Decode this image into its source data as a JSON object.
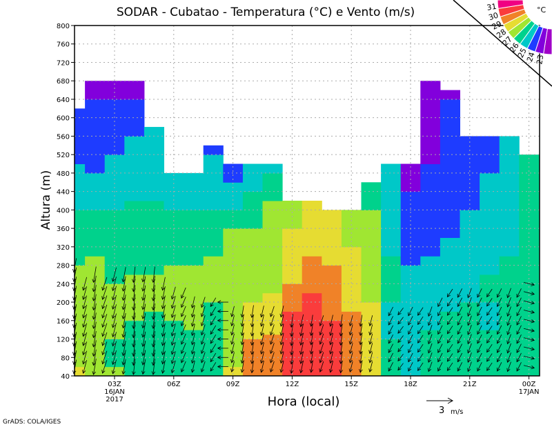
{
  "chart_data": {
    "type": "heatmap",
    "title": "SODAR - Cubatao - Temperatura (°C) e Vento (m/s)",
    "xlabel": "Hora (local)",
    "ylabel": "Altura (m)",
    "ylim": [
      40,
      800
    ],
    "yticks": [
      "40",
      "80",
      "120",
      "160",
      "200",
      "240",
      "280",
      "320",
      "360",
      "400",
      "440",
      "480",
      "520",
      "560",
      "600",
      "640",
      "680",
      "720",
      "760",
      "800"
    ],
    "xlim_hours": [
      1,
      24.6
    ],
    "xticks": [
      {
        "hour": 3,
        "label": "03Z",
        "sub1": "16JAN",
        "sub2": "2017"
      },
      {
        "hour": 6,
        "label": "06Z"
      },
      {
        "hour": 9,
        "label": "09Z"
      },
      {
        "hour": 12,
        "label": "12Z"
      },
      {
        "hour": 15,
        "label": "15Z"
      },
      {
        "hour": 18,
        "label": "18Z"
      },
      {
        "hour": 21,
        "label": "21Z"
      },
      {
        "hour": 24,
        "label": "00Z",
        "sub1": "17JAN"
      }
    ],
    "grid": true,
    "colorbar": {
      "unit": "°C",
      "labels": [
        "23",
        "24",
        "25",
        "26",
        "27",
        "28",
        "29",
        "30",
        "31"
      ],
      "colors": [
        "#a000c8",
        "#8200dc",
        "#1e3cff",
        "#00c8c8",
        "#00d28c",
        "#a0e632",
        "#e6dc32",
        "#f08228",
        "#fa3c3c",
        "#f00082"
      ]
    },
    "temperature_columns": [
      {
        "hour": 1,
        "bands": [
          [
            28.5,
            60
          ],
          [
            27.5,
            280
          ],
          [
            26.5,
            400
          ],
          [
            25.5,
            500
          ],
          [
            24.5,
            620
          ]
        ]
      },
      {
        "hour": 2,
        "bands": [
          [
            27.5,
            300
          ],
          [
            26.5,
            400
          ],
          [
            25.5,
            480
          ],
          [
            24.5,
            640
          ],
          [
            23.5,
            680
          ]
        ]
      },
      {
        "hour": 3,
        "bands": [
          [
            27.5,
            60
          ],
          [
            26.5,
            120
          ],
          [
            27.5,
            240
          ],
          [
            26.5,
            400
          ],
          [
            25.5,
            520
          ],
          [
            24.5,
            640
          ],
          [
            23.5,
            680
          ]
        ]
      },
      {
        "hour": 4,
        "bands": [
          [
            26.5,
            160
          ],
          [
            27.5,
            260
          ],
          [
            26.5,
            420
          ],
          [
            25.5,
            560
          ],
          [
            24.5,
            640
          ],
          [
            23.5,
            680
          ]
        ]
      },
      {
        "hour": 5,
        "bands": [
          [
            26.5,
            180
          ],
          [
            27.5,
            260
          ],
          [
            26.5,
            420
          ],
          [
            25.5,
            580
          ]
        ]
      },
      {
        "hour": 6,
        "bands": [
          [
            26.5,
            160
          ],
          [
            27.5,
            280
          ],
          [
            26.5,
            400
          ],
          [
            25.5,
            480
          ]
        ]
      },
      {
        "hour": 7,
        "bands": [
          [
            26.5,
            140
          ],
          [
            27.5,
            280
          ],
          [
            26.5,
            400
          ],
          [
            25.5,
            480
          ]
        ]
      },
      {
        "hour": 8,
        "bands": [
          [
            26.5,
            200
          ],
          [
            27.5,
            300
          ],
          [
            26.5,
            400
          ],
          [
            25.5,
            520
          ],
          [
            24.5,
            540
          ]
        ]
      },
      {
        "hour": 9,
        "bands": [
          [
            28.5,
            60
          ],
          [
            27.5,
            360
          ],
          [
            26.5,
            400
          ],
          [
            25.5,
            460
          ],
          [
            24.5,
            500
          ]
        ]
      },
      {
        "hour": 10,
        "bands": [
          [
            29.5,
            120
          ],
          [
            28.5,
            200
          ],
          [
            27.5,
            360
          ],
          [
            26.5,
            440
          ],
          [
            25.5,
            500
          ]
        ]
      },
      {
        "hour": 11,
        "bands": [
          [
            29.5,
            130
          ],
          [
            28.5,
            220
          ],
          [
            27.5,
            420
          ],
          [
            26.5,
            480
          ],
          [
            25.5,
            500
          ]
        ]
      },
      {
        "hour": 12,
        "bands": [
          [
            30.5,
            180
          ],
          [
            29.5,
            240
          ],
          [
            28.5,
            360
          ],
          [
            27.5,
            420
          ]
        ]
      },
      {
        "hour": 13,
        "bands": [
          [
            30.5,
            220
          ],
          [
            29.5,
            300
          ],
          [
            28.5,
            420
          ]
        ]
      },
      {
        "hour": 14,
        "bands": [
          [
            30.5,
            160
          ],
          [
            29.5,
            280
          ],
          [
            28.5,
            400
          ]
        ]
      },
      {
        "hour": 15,
        "bands": [
          [
            29.5,
            180
          ],
          [
            28.5,
            320
          ],
          [
            27.5,
            400
          ]
        ]
      },
      {
        "hour": 16,
        "bands": [
          [
            28.5,
            200
          ],
          [
            27.5,
            400
          ],
          [
            26.5,
            460
          ]
        ]
      },
      {
        "hour": 17,
        "bands": [
          [
            26.5,
            120
          ],
          [
            25.5,
            200
          ],
          [
            26.5,
            300
          ],
          [
            25.5,
            500
          ]
        ]
      },
      {
        "hour": 18,
        "bands": [
          [
            25.5,
            280
          ],
          [
            24.5,
            440
          ],
          [
            23.5,
            500
          ]
        ]
      },
      {
        "hour": 19,
        "bands": [
          [
            26.5,
            140
          ],
          [
            25.5,
            300
          ],
          [
            24.5,
            500
          ],
          [
            23.5,
            680
          ]
        ]
      },
      {
        "hour": 20,
        "bands": [
          [
            26.5,
            180
          ],
          [
            25.5,
            340
          ],
          [
            24.5,
            640
          ],
          [
            23.5,
            660
          ]
        ]
      },
      {
        "hour": 21,
        "bands": [
          [
            26.5,
            200
          ],
          [
            25.5,
            400
          ],
          [
            24.5,
            560
          ]
        ]
      },
      {
        "hour": 22,
        "bands": [
          [
            26.5,
            140
          ],
          [
            25.5,
            200
          ],
          [
            26.5,
            260
          ],
          [
            25.5,
            480
          ],
          [
            24.5,
            560
          ]
        ]
      },
      {
        "hour": 23,
        "bands": [
          [
            26.5,
            300
          ],
          [
            25.5,
            520
          ],
          [
            25.5,
            560
          ]
        ]
      },
      {
        "hour": 24,
        "bands": [
          [
            26.5,
            520
          ]
        ]
      }
    ],
    "wind_columns": [
      {
        "hour": 1,
        "u": -0.3,
        "v": -1.6,
        "top": 280
      },
      {
        "hour": 1.5,
        "u": -0.4,
        "v": -1.5,
        "top": 240
      },
      {
        "hour": 2,
        "u": -0.3,
        "v": -1.8,
        "top": 260
      },
      {
        "hour": 2.5,
        "u": -0.5,
        "v": -1.5,
        "top": 240
      },
      {
        "hour": 3,
        "u": -0.4,
        "v": -1.6,
        "top": 260
      },
      {
        "hour": 3.5,
        "u": -0.3,
        "v": -1.7,
        "top": 260
      },
      {
        "hour": 4,
        "u": -0.2,
        "v": -1.8,
        "top": 260
      },
      {
        "hour": 4.5,
        "u": -0.3,
        "v": -1.7,
        "top": 260
      },
      {
        "hour": 5,
        "u": -0.2,
        "v": -1.8,
        "top": 260
      },
      {
        "hour": 5.5,
        "u": -0.3,
        "v": -1.5,
        "top": 240
      },
      {
        "hour": 6,
        "u": -0.4,
        "v": -1.4,
        "top": 220
      },
      {
        "hour": 6.5,
        "u": -0.5,
        "v": -1.2,
        "top": 220
      },
      {
        "hour": 7,
        "u": -0.3,
        "v": -1.3,
        "top": 200
      },
      {
        "hour": 7.5,
        "u": -0.4,
        "v": -1.2,
        "top": 200
      },
      {
        "hour": 8,
        "u": -0.6,
        "v": -1.0,
        "top": 200
      },
      {
        "hour": 8.5,
        "u": -1.2,
        "v": 0.0,
        "top": 200
      },
      {
        "hour": 9,
        "u": -0.3,
        "v": -1.2,
        "top": 180
      },
      {
        "hour": 9.5,
        "u": -0.2,
        "v": -1.3,
        "top": 180
      },
      {
        "hour": 10,
        "u": -0.2,
        "v": -1.4,
        "top": 180
      },
      {
        "hour": 10.5,
        "u": -0.3,
        "v": -1.3,
        "top": 180
      },
      {
        "hour": 11,
        "u": -0.4,
        "v": -1.2,
        "top": 180
      },
      {
        "hour": 11.5,
        "u": -0.3,
        "v": -1.3,
        "top": 180
      },
      {
        "hour": 12,
        "u": -0.2,
        "v": -1.5,
        "top": 160
      },
      {
        "hour": 12.5,
        "u": -0.3,
        "v": -1.4,
        "top": 160
      },
      {
        "hour": 13,
        "u": -0.2,
        "v": -1.3,
        "top": 160
      },
      {
        "hour": 13.5,
        "u": -0.4,
        "v": -1.2,
        "top": 160
      },
      {
        "hour": 14,
        "u": -0.3,
        "v": -1.3,
        "top": 160
      },
      {
        "hour": 14.5,
        "u": -0.2,
        "v": -1.4,
        "top": 160
      },
      {
        "hour": 15,
        "u": -0.3,
        "v": -1.2,
        "top": 160
      },
      {
        "hour": 15.5,
        "u": -0.2,
        "v": -1.3,
        "top": 160
      },
      {
        "hour": 16,
        "u": -0.3,
        "v": -1.2,
        "top": 160
      },
      {
        "hour": 17,
        "u": -0.5,
        "v": -1.0,
        "top": 180
      },
      {
        "hour": 17.5,
        "u": -0.6,
        "v": -0.8,
        "top": 180
      },
      {
        "hour": 18,
        "u": -0.5,
        "v": -1.0,
        "top": 180
      },
      {
        "hour": 18.5,
        "u": -0.6,
        "v": -0.9,
        "top": 180
      },
      {
        "hour": 19,
        "u": -0.4,
        "v": -1.1,
        "top": 180
      },
      {
        "hour": 19.5,
        "u": -0.5,
        "v": -1.0,
        "top": 200
      },
      {
        "hour": 20,
        "u": -0.6,
        "v": -0.9,
        "top": 220
      },
      {
        "hour": 20.5,
        "u": -0.5,
        "v": -1.0,
        "top": 220
      },
      {
        "hour": 21,
        "u": -0.4,
        "v": -1.1,
        "top": 220
      },
      {
        "hour": 21.5,
        "u": -0.5,
        "v": -1.0,
        "top": 220
      },
      {
        "hour": 22,
        "u": -0.6,
        "v": -0.9,
        "top": 220
      },
      {
        "hour": 22.5,
        "u": -0.5,
        "v": -1.0,
        "top": 220
      },
      {
        "hour": 23,
        "u": -0.4,
        "v": -1.1,
        "top": 220
      },
      {
        "hour": 23.5,
        "u": -0.5,
        "v": -1.0,
        "top": 220
      },
      {
        "hour": 24,
        "u": 1.2,
        "v": -0.3,
        "top": 240
      }
    ],
    "vector_legend": {
      "value": "3",
      "unit": "m/s"
    }
  },
  "footer": "GrADS: COLA/IGES"
}
